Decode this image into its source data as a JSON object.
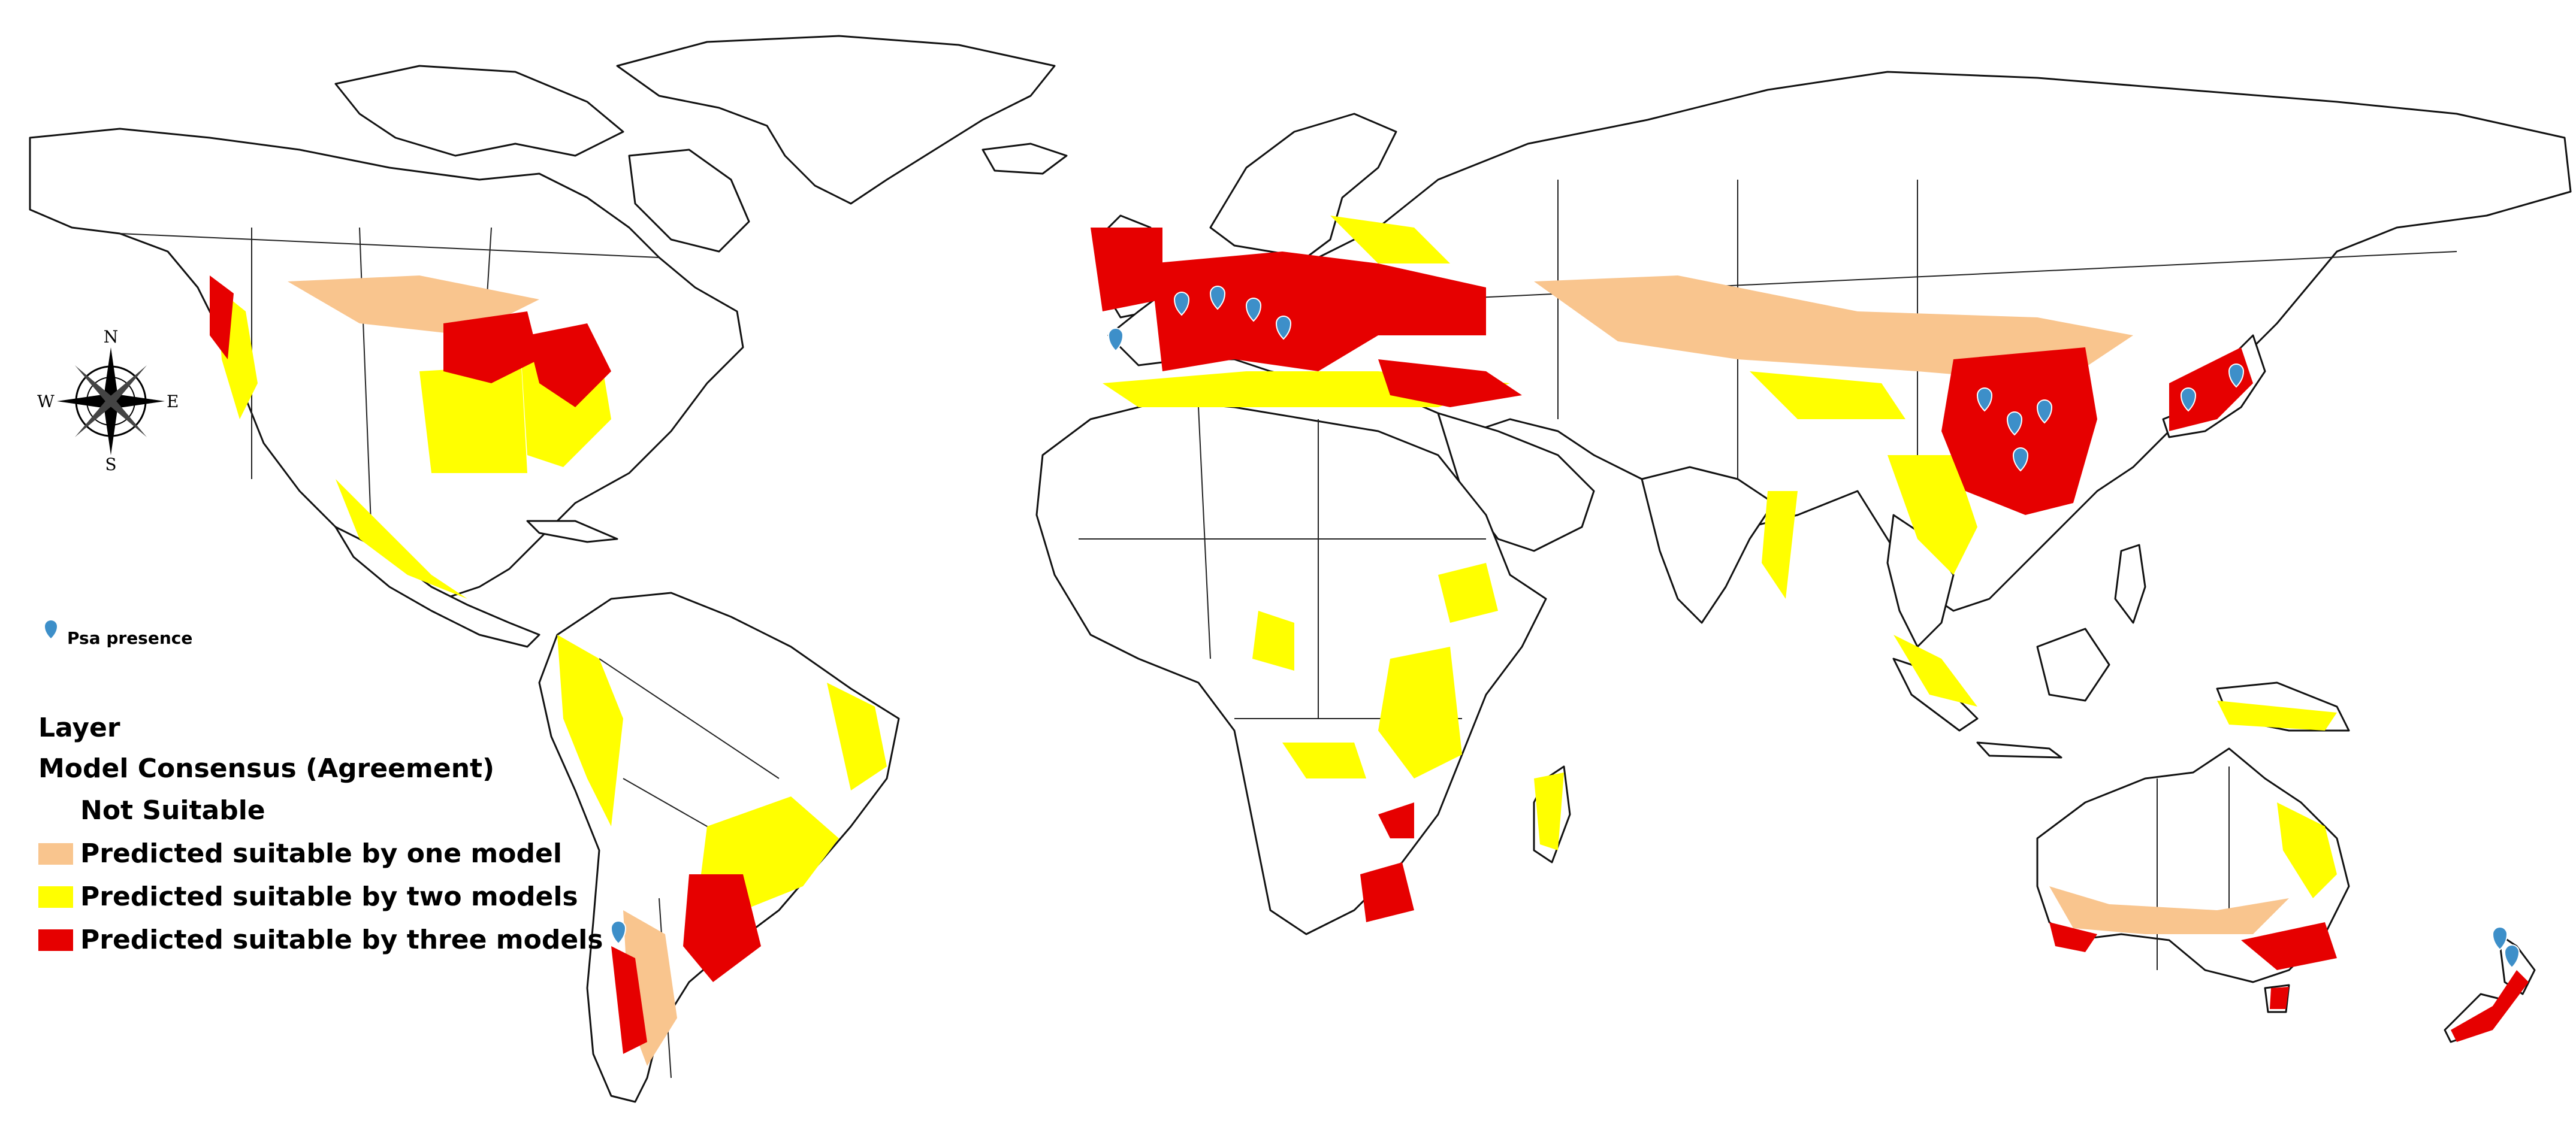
{
  "colors": {
    "not_suitable": "#ffffff",
    "one_model": "#f9c58e",
    "two_models": "#ffff00",
    "three_models": "#e60000",
    "presence_marker": "#3d8fc9"
  },
  "compass": {
    "n": "N",
    "s": "S",
    "e": "E",
    "w": "W"
  },
  "presence_legend": {
    "label": "Psa presence",
    "icon": "map-pin-icon"
  },
  "legend": {
    "title": "Layer",
    "subtitle": "Model Consensus (Agreement)",
    "items": [
      {
        "label": "Not Suitable",
        "color": "#ffffff"
      },
      {
        "label": "Predicted suitable by one model",
        "color": "#f9c58e"
      },
      {
        "label": "Predicted suitable by two models",
        "color": "#ffff00"
      },
      {
        "label": "Predicted suitable by three models",
        "color": "#e60000"
      }
    ]
  }
}
